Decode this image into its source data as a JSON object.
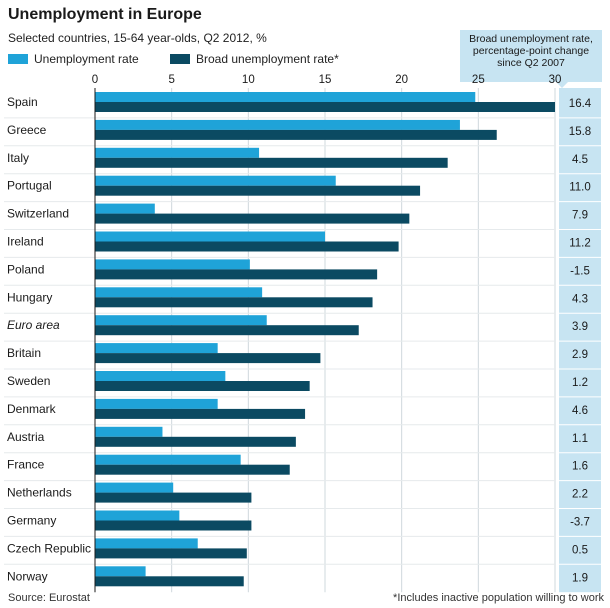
{
  "title": "Unemployment in Europe",
  "subtitle": "Selected countries, 15-64 year-olds, Q2 2012, %",
  "legend": [
    {
      "label": "Unemployment rate",
      "color": "#1fa3d8"
    },
    {
      "label": "Broad unemployment rate*",
      "color": "#0b4a62"
    }
  ],
  "side_header": {
    "line1": "Broad unemployment rate,",
    "line2": "percentage-point change",
    "line3": "since Q2 2007"
  },
  "source": "Source: Eurostat",
  "footnote": "*Includes inactive population willing to work",
  "chart_data": {
    "type": "bar",
    "orientation": "horizontal",
    "title": "Unemployment in Europe",
    "subtitle": "Selected countries, 15-64 year-olds, Q2 2012, %",
    "xlim": [
      0,
      30
    ],
    "xticks": [
      0,
      5,
      10,
      15,
      20,
      25,
      30
    ],
    "categories": [
      "Spain",
      "Greece",
      "Italy",
      "Portugal",
      "Switzerland",
      "Ireland",
      "Poland",
      "Hungary",
      "Euro area",
      "Britain",
      "Sweden",
      "Denmark",
      "Austria",
      "France",
      "Netherlands",
      "Germany",
      "Czech Republic",
      "Norway"
    ],
    "series": [
      {
        "name": "Unemployment rate",
        "color": "#1fa3d8",
        "values": [
          24.8,
          23.8,
          10.7,
          15.7,
          3.9,
          15.0,
          10.1,
          10.9,
          11.2,
          8.0,
          8.5,
          8.0,
          4.4,
          9.5,
          5.1,
          5.5,
          6.7,
          3.3
        ]
      },
      {
        "name": "Broad unemployment rate*",
        "color": "#0b4a62",
        "values": [
          30.0,
          26.2,
          23.0,
          21.2,
          20.5,
          19.8,
          18.4,
          18.1,
          17.2,
          14.7,
          14.0,
          13.7,
          13.1,
          12.7,
          10.2,
          10.2,
          9.9,
          9.7
        ]
      }
    ],
    "change_header": "Broad unemployment rate, percentage-point change since Q2 2007",
    "change_values": [
      "16.4",
      "15.8",
      "4.5",
      "11.0",
      "7.9",
      "11.2",
      "-1.5",
      "4.3",
      "3.9",
      "2.9",
      "1.2",
      "4.6",
      "1.1",
      "1.6",
      "2.2",
      "-3.7",
      "0.5",
      "1.9"
    ],
    "italic_categories": [
      "Euro area"
    ],
    "grid": true
  }
}
